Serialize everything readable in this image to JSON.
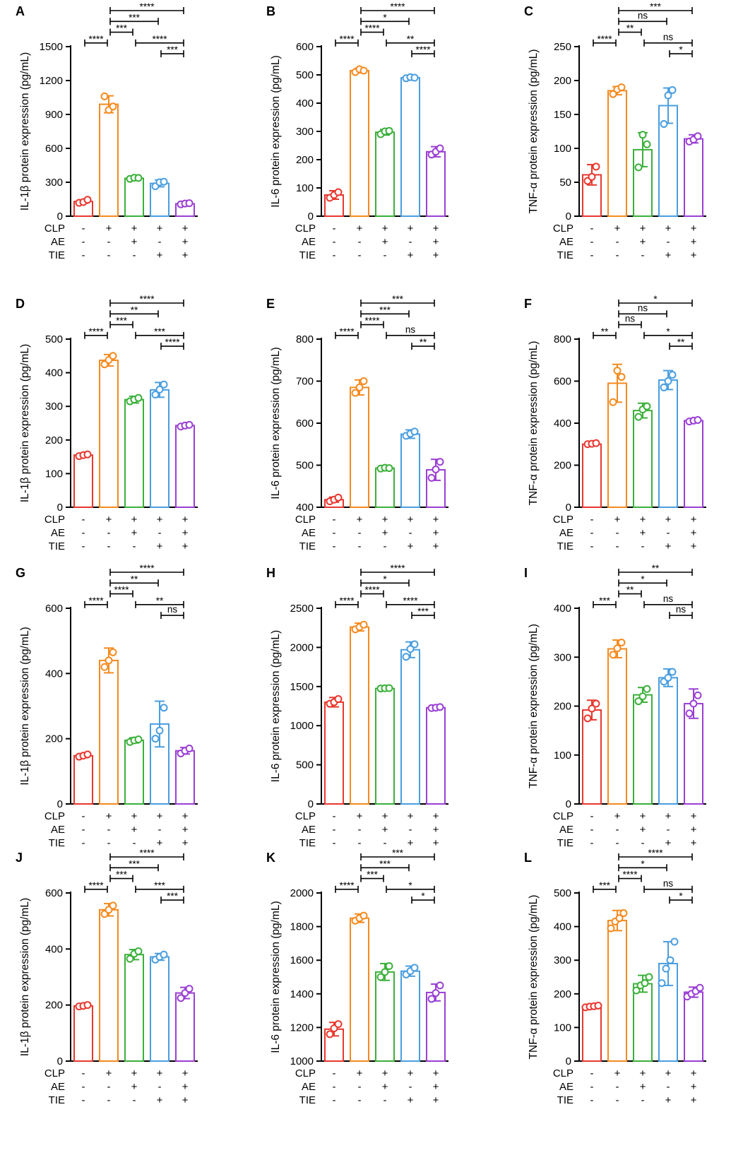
{
  "conditions": [
    "CLP",
    "AE",
    "TIE"
  ],
  "conditionSigns": [
    [
      "-",
      "-",
      "-"
    ],
    [
      "+",
      "-",
      "-"
    ],
    [
      "+",
      "+",
      "-"
    ],
    [
      "+",
      "-",
      "+"
    ],
    [
      "+",
      "+",
      "+"
    ]
  ],
  "groupColors": [
    "#e8382f",
    "#f58a1f",
    "#3bb03a",
    "#4a9ee0",
    "#9b3fd4"
  ],
  "chart_data": [
    {
      "id": "A",
      "type": "bar",
      "ylabel": "IL-1β protein expression (pg/mL)",
      "ylim": [
        0,
        1500
      ],
      "ticks": [
        0,
        300,
        600,
        900,
        1200,
        1500
      ],
      "values": [
        130,
        990,
        335,
        290,
        110
      ],
      "errors": [
        15,
        75,
        12,
        30,
        10
      ],
      "points": [
        [
          118,
          125,
          145
        ],
        [
          1060,
          940,
          970
        ],
        [
          330,
          340,
          338
        ],
        [
          265,
          300,
          305
        ],
        [
          105,
          112,
          115
        ]
      ],
      "brackets": [
        {
          "from": 0,
          "to": 1,
          "label": "****"
        },
        {
          "from": 1,
          "to": 2,
          "label": "***"
        },
        {
          "from": 1,
          "to": 3,
          "label": "***"
        },
        {
          "from": 1,
          "to": 4,
          "label": "****"
        },
        {
          "from": 2,
          "to": 4,
          "label": "****"
        },
        {
          "from": 3,
          "to": 4,
          "label": "***"
        }
      ]
    },
    {
      "id": "B",
      "type": "bar",
      "ylabel": "IL-6 protein expression (pg/mL)",
      "ylim": [
        0,
        600
      ],
      "ticks": [
        0,
        100,
        200,
        300,
        400,
        500,
        600
      ],
      "values": [
        75,
        515,
        297,
        490,
        228
      ],
      "errors": [
        15,
        8,
        10,
        4,
        18
      ],
      "points": [
        [
          65,
          75,
          85
        ],
        [
          510,
          520,
          515
        ],
        [
          290,
          300,
          302
        ],
        [
          488,
          492,
          490
        ],
        [
          218,
          228,
          240
        ]
      ],
      "brackets": [
        {
          "from": 0,
          "to": 1,
          "label": "****"
        },
        {
          "from": 1,
          "to": 2,
          "label": "****"
        },
        {
          "from": 1,
          "to": 3,
          "label": "*"
        },
        {
          "from": 1,
          "to": 4,
          "label": "****"
        },
        {
          "from": 2,
          "to": 4,
          "label": "**"
        },
        {
          "from": 3,
          "to": 4,
          "label": "****"
        }
      ]
    },
    {
      "id": "C",
      "type": "bar",
      "ylabel": "TNF-α protein expression (pg/mL)",
      "ylim": [
        0,
        250
      ],
      "ticks": [
        0,
        50,
        100,
        150,
        200,
        250
      ],
      "values": [
        61,
        185,
        98,
        163,
        114
      ],
      "errors": [
        15,
        6,
        25,
        26,
        6
      ],
      "points": [
        [
          52,
          58,
          73
        ],
        [
          180,
          187,
          190
        ],
        [
          72,
          120,
          106
        ],
        [
          136,
          178,
          186
        ],
        [
          110,
          113,
          118
        ]
      ],
      "brackets": [
        {
          "from": 0,
          "to": 1,
          "label": "****"
        },
        {
          "from": 1,
          "to": 2,
          "label": "**"
        },
        {
          "from": 1,
          "to": 3,
          "label": "ns"
        },
        {
          "from": 1,
          "to": 4,
          "label": "***"
        },
        {
          "from": 2,
          "to": 4,
          "label": "ns"
        },
        {
          "from": 3,
          "to": 4,
          "label": "*"
        }
      ]
    },
    {
      "id": "D",
      "type": "bar",
      "ylabel": "IL-1β protein expression (pg/mL)",
      "ylim": [
        0,
        500
      ],
      "ticks": [
        0,
        100,
        200,
        300,
        400,
        500
      ],
      "values": [
        155,
        437,
        320,
        349,
        243
      ],
      "errors": [
        5,
        17,
        10,
        22,
        5
      ],
      "points": [
        [
          152,
          155,
          157
        ],
        [
          425,
          438,
          450
        ],
        [
          315,
          320,
          325
        ],
        [
          335,
          350,
          365
        ],
        [
          240,
          243,
          245
        ]
      ],
      "brackets": [
        {
          "from": 0,
          "to": 1,
          "label": "****"
        },
        {
          "from": 1,
          "to": 2,
          "label": "***"
        },
        {
          "from": 1,
          "to": 3,
          "label": "**"
        },
        {
          "from": 1,
          "to": 4,
          "label": "****"
        },
        {
          "from": 2,
          "to": 4,
          "label": "***"
        },
        {
          "from": 3,
          "to": 4,
          "label": "****"
        }
      ]
    },
    {
      "id": "E",
      "type": "bar",
      "ylabel": "IL-6 protein expression (pg/mL)",
      "ylim": [
        400,
        800
      ],
      "ticks": [
        400,
        500,
        600,
        700,
        800
      ],
      "values": [
        418,
        685,
        493,
        574,
        489
      ],
      "errors": [
        6,
        18,
        3,
        10,
        25
      ],
      "points": [
        [
          414,
          418,
          423
        ],
        [
          672,
          685,
          700
        ],
        [
          492,
          494,
          493
        ],
        [
          570,
          575,
          580
        ],
        [
          470,
          490,
          508
        ]
      ],
      "brackets": [
        {
          "from": 0,
          "to": 1,
          "label": "****"
        },
        {
          "from": 1,
          "to": 2,
          "label": "****"
        },
        {
          "from": 1,
          "to": 3,
          "label": "***"
        },
        {
          "from": 1,
          "to": 4,
          "label": "***"
        },
        {
          "from": 2,
          "to": 4,
          "label": "ns"
        },
        {
          "from": 3,
          "to": 4,
          "label": "**"
        }
      ]
    },
    {
      "id": "F",
      "type": "bar",
      "ylabel": "TNF-α protein expression (pg/mL)",
      "ylim": [
        0,
        800
      ],
      "ticks": [
        0,
        200,
        400,
        600,
        800
      ],
      "values": [
        300,
        590,
        460,
        605,
        412
      ],
      "errors": [
        5,
        90,
        35,
        45,
        8
      ],
      "points": [
        [
          300,
          302,
          305
        ],
        [
          500,
          650,
          620
        ],
        [
          430,
          465,
          480
        ],
        [
          570,
          600,
          630
        ],
        [
          408,
          412,
          415
        ]
      ],
      "brackets": [
        {
          "from": 0,
          "to": 1,
          "label": "**"
        },
        {
          "from": 1,
          "to": 2,
          "label": "ns"
        },
        {
          "from": 1,
          "to": 3,
          "label": "ns"
        },
        {
          "from": 1,
          "to": 4,
          "label": "*"
        },
        {
          "from": 2,
          "to": 4,
          "label": "*"
        },
        {
          "from": 3,
          "to": 4,
          "label": "**"
        }
      ]
    },
    {
      "id": "G",
      "type": "bar",
      "ylabel": "IL-1β protein expression (pg/mL)",
      "ylim": [
        0,
        600
      ],
      "ticks": [
        0,
        200,
        400,
        600
      ],
      "values": [
        148,
        440,
        195,
        245,
        163
      ],
      "errors": [
        6,
        38,
        8,
        70,
        10
      ],
      "points": [
        [
          145,
          148,
          152
        ],
        [
          420,
          440,
          465
        ],
        [
          190,
          195,
          198
        ],
        [
          200,
          225,
          295
        ],
        [
          155,
          163,
          170
        ]
      ],
      "brackets": [
        {
          "from": 0,
          "to": 1,
          "label": "****"
        },
        {
          "from": 1,
          "to": 2,
          "label": "****"
        },
        {
          "from": 1,
          "to": 3,
          "label": "**"
        },
        {
          "from": 1,
          "to": 4,
          "label": "****"
        },
        {
          "from": 2,
          "to": 4,
          "label": "**"
        },
        {
          "from": 3,
          "to": 4,
          "label": "ns"
        }
      ]
    },
    {
      "id": "H",
      "type": "bar",
      "ylabel": "IL-6 protein expression (pg/mL)",
      "ylim": [
        0,
        2500
      ],
      "ticks": [
        0,
        500,
        1000,
        1500,
        2000,
        2500
      ],
      "values": [
        1300,
        2260,
        1475,
        1970,
        1230
      ],
      "errors": [
        60,
        50,
        5,
        100,
        15
      ],
      "points": [
        [
          1280,
          1300,
          1340
        ],
        [
          2230,
          2260,
          2290
        ],
        [
          1475,
          1478,
          1480
        ],
        [
          1880,
          1980,
          2040
        ],
        [
          1225,
          1230,
          1238
        ]
      ],
      "brackets": [
        {
          "from": 0,
          "to": 1,
          "label": "****"
        },
        {
          "from": 1,
          "to": 2,
          "label": "****"
        },
        {
          "from": 1,
          "to": 3,
          "label": "*"
        },
        {
          "from": 1,
          "to": 4,
          "label": "****"
        },
        {
          "from": 2,
          "to": 4,
          "label": "****"
        },
        {
          "from": 3,
          "to": 4,
          "label": "***"
        }
      ]
    },
    {
      "id": "I",
      "type": "bar",
      "ylabel": "TNF-α protein expression (pg/mL)",
      "ylim": [
        0,
        400
      ],
      "ticks": [
        0,
        100,
        200,
        300,
        400
      ],
      "values": [
        192,
        317,
        223,
        258,
        205
      ],
      "errors": [
        20,
        18,
        15,
        18,
        30
      ],
      "points": [
        [
          175,
          195,
          205
        ],
        [
          305,
          318,
          330
        ],
        [
          210,
          220,
          235
        ],
        [
          250,
          258,
          270
        ],
        [
          185,
          205,
          222
        ]
      ],
      "brackets": [
        {
          "from": 0,
          "to": 1,
          "label": "***"
        },
        {
          "from": 1,
          "to": 2,
          "label": "**"
        },
        {
          "from": 1,
          "to": 3,
          "label": "*"
        },
        {
          "from": 1,
          "to": 4,
          "label": "**"
        },
        {
          "from": 2,
          "to": 4,
          "label": "ns"
        },
        {
          "from": 3,
          "to": 4,
          "label": "ns"
        }
      ]
    },
    {
      "id": "J",
      "type": "bar",
      "ylabel": "IL-1β protein expression (pg/mL)",
      "ylim": [
        0,
        600
      ],
      "ticks": [
        0,
        200,
        400,
        600
      ],
      "values": [
        197,
        540,
        380,
        372,
        243
      ],
      "errors": [
        4,
        22,
        18,
        12,
        20
      ],
      "points": [
        [
          195,
          197,
          200
        ],
        [
          525,
          540,
          555
        ],
        [
          365,
          383,
          392
        ],
        [
          362,
          372,
          380
        ],
        [
          225,
          243,
          258
        ]
      ],
      "brackets": [
        {
          "from": 0,
          "to": 1,
          "label": "****"
        },
        {
          "from": 1,
          "to": 2,
          "label": "***"
        },
        {
          "from": 1,
          "to": 3,
          "label": "***"
        },
        {
          "from": 1,
          "to": 4,
          "label": "****"
        },
        {
          "from": 2,
          "to": 4,
          "label": "***"
        },
        {
          "from": 3,
          "to": 4,
          "label": "***"
        }
      ]
    },
    {
      "id": "K",
      "type": "bar",
      "ylabel": "IL-6 protein expression (pg/mL)",
      "ylim": [
        1000,
        2000
      ],
      "ticks": [
        1000,
        1200,
        1400,
        1600,
        1800,
        2000
      ],
      "values": [
        1190,
        1850,
        1530,
        1535,
        1408
      ],
      "errors": [
        40,
        25,
        50,
        30,
        50
      ],
      "points": [
        [
          1160,
          1195,
          1220
        ],
        [
          1835,
          1850,
          1865
        ],
        [
          1500,
          1530,
          1565
        ],
        [
          1515,
          1535,
          1555
        ],
        [
          1370,
          1405,
          1450
        ]
      ],
      "brackets": [
        {
          "from": 0,
          "to": 1,
          "label": "****"
        },
        {
          "from": 1,
          "to": 2,
          "label": "***"
        },
        {
          "from": 1,
          "to": 3,
          "label": "***"
        },
        {
          "from": 1,
          "to": 4,
          "label": "***"
        },
        {
          "from": 2,
          "to": 4,
          "label": "*"
        },
        {
          "from": 3,
          "to": 4,
          "label": "*"
        }
      ]
    },
    {
      "id": "L",
      "type": "bar",
      "ylabel": "TNF-α protein expression (pg/mL)",
      "ylim": [
        0,
        500
      ],
      "ticks": [
        0,
        100,
        200,
        300,
        400,
        500
      ],
      "values": [
        163,
        418,
        230,
        290,
        205
      ],
      "errors": [
        4,
        30,
        25,
        65,
        15
      ],
      "points": [
        [
          160,
          162,
          163,
          165
        ],
        [
          395,
          415,
          425,
          440
        ],
        [
          210,
          225,
          232,
          250
        ],
        [
          232,
          275,
          300,
          355
        ],
        [
          192,
          200,
          208,
          218
        ]
      ],
      "brackets": [
        {
          "from": 0,
          "to": 1,
          "label": "***"
        },
        {
          "from": 1,
          "to": 2,
          "label": "****"
        },
        {
          "from": 1,
          "to": 3,
          "label": "*"
        },
        {
          "from": 1,
          "to": 4,
          "label": "****"
        },
        {
          "from": 2,
          "to": 4,
          "label": "ns"
        },
        {
          "from": 3,
          "to": 4,
          "label": "*"
        }
      ]
    }
  ]
}
